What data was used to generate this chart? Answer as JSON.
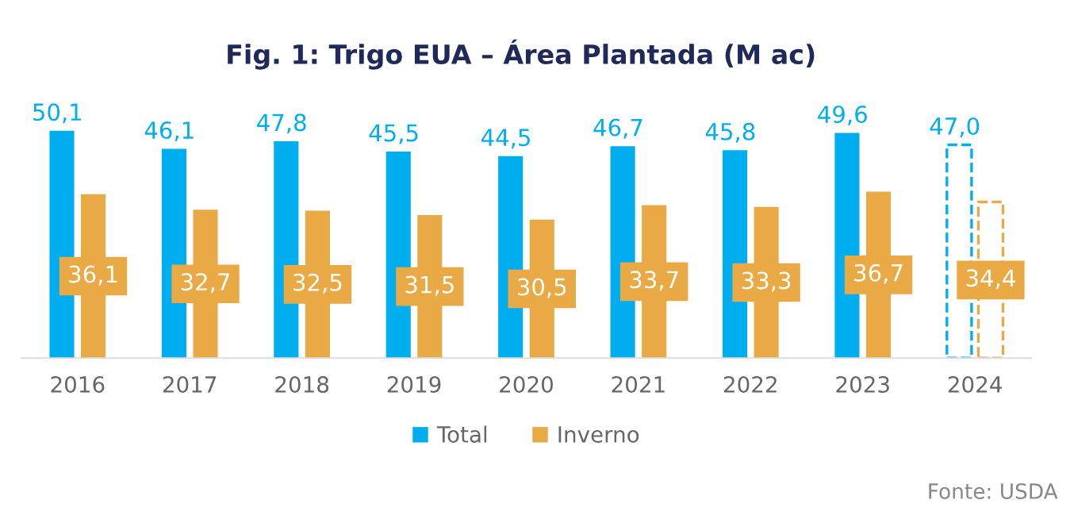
{
  "chart_data": {
    "type": "bar",
    "title": "Fig. 1: Trigo EUA – Área Plantada (M ac)",
    "categories": [
      "2016",
      "2017",
      "2018",
      "2019",
      "2020",
      "2021",
      "2022",
      "2023",
      "2024"
    ],
    "series": [
      {
        "name": "Total",
        "color": "#00aeef",
        "values": [
          50.1,
          46.1,
          47.8,
          45.5,
          44.5,
          46.7,
          45.8,
          49.6,
          null
        ],
        "value_labels": [
          "50,1",
          "46,1",
          "47,8",
          "45,5",
          "44,5",
          "46,7",
          "45,8",
          "49,6",
          null
        ]
      },
      {
        "name": "Inverno",
        "color": "#e9a944",
        "values": [
          36.1,
          32.7,
          32.5,
          31.5,
          30.5,
          33.7,
          33.3,
          36.7,
          null
        ],
        "value_labels": [
          "36,1",
          "32,7",
          "32,5",
          "31,5",
          "30,5",
          "33,7",
          "33,3",
          "36,7",
          null
        ]
      },
      {
        "color": "#00aeef",
        "line_style": "dashed",
        "values": [
          null,
          null,
          null,
          null,
          null,
          null,
          null,
          null,
          47.0
        ],
        "value_labels": [
          null,
          null,
          null,
          null,
          null,
          null,
          null,
          null,
          "47,0"
        ]
      },
      {
        "color": "#e9a944",
        "line_style": "dashed",
        "values": [
          null,
          null,
          null,
          null,
          null,
          null,
          null,
          null,
          34.4
        ],
        "value_labels": [
          null,
          null,
          null,
          null,
          null,
          null,
          null,
          null,
          "34,4"
        ]
      }
    ],
    "tick_labels": "x",
    "grid": false,
    "legend": "bottom",
    "annotations": [
      "Fonte: USDA"
    ]
  }
}
